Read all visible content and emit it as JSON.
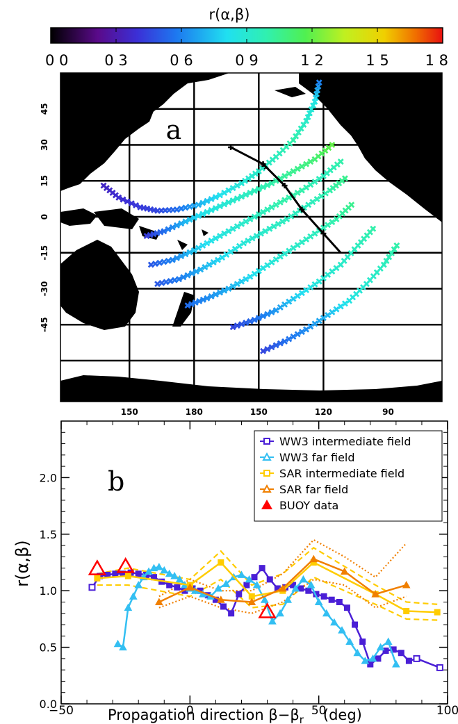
{
  "colorbar": {
    "title": "r(α,β)",
    "ticks": [
      "0 0",
      "0 3",
      "0 6",
      "0 9",
      "1 2",
      "1 5",
      "1 8"
    ],
    "range": [
      0,
      1.8
    ]
  },
  "chart_data": [
    {
      "type": "scatter",
      "panel_label": "a",
      "description_type": "map",
      "lat_tick_labels": [
        "45",
        "30",
        "15",
        "0",
        "-15",
        "-30",
        "-45"
      ],
      "lon_tick_labels": [
        "150",
        "180",
        "150",
        "120",
        "90"
      ],
      "lat_lines": [
        45,
        30,
        15,
        0,
        -15,
        -30,
        -45,
        -60
      ],
      "lon_lines": [
        150,
        180,
        210,
        240
      ],
      "track": [
        [
          -163,
          29
        ],
        [
          -148,
          22
        ],
        [
          -138,
          13
        ],
        [
          -130,
          3
        ],
        [
          -120,
          -7
        ],
        [
          -112,
          -15
        ]
      ],
      "arcs": [
        {
          "name": "arc-1",
          "points": [
            [
              138,
              13
            ],
            [
              145,
              8
            ],
            [
              155,
              4
            ],
            [
              163,
              2.5
            ],
            [
              172,
              3
            ],
            [
              182,
              5
            ],
            [
              192,
              9
            ],
            [
              202,
              14
            ],
            [
              210,
              19
            ],
            [
              218,
              25
            ],
            [
              226,
              32
            ],
            [
              232,
              40
            ],
            [
              236,
              48
            ],
            [
              238,
              56
            ]
          ],
          "values": [
            0.35,
            0.38,
            0.42,
            0.45,
            0.55,
            0.7,
            0.82,
            0.88,
            0.92,
            0.95,
            1.0,
            0.92,
            0.85,
            0.6
          ]
        },
        {
          "name": "arc-2",
          "points": [
            [
              158,
              -8
            ],
            [
              166,
              -6
            ],
            [
              176,
              -2
            ],
            [
              186,
              2
            ],
            [
              196,
              6
            ],
            [
              206,
              10
            ],
            [
              216,
              14
            ],
            [
              226,
              19
            ],
            [
              236,
              24
            ],
            [
              244,
              30
            ]
          ],
          "values": [
            0.42,
            0.55,
            0.72,
            0.85,
            0.9,
            0.95,
            1.0,
            1.05,
            1.1,
            1.2
          ]
        },
        {
          "name": "arc-3",
          "points": [
            [
              160,
              -20
            ],
            [
              170,
              -18
            ],
            [
              180,
              -14
            ],
            [
              190,
              -9
            ],
            [
              200,
              -4
            ],
            [
              210,
              1
            ],
            [
              220,
              6
            ],
            [
              230,
              11
            ],
            [
              240,
              17
            ],
            [
              248,
              23
            ]
          ],
          "values": [
            0.5,
            0.6,
            0.75,
            0.85,
            0.9,
            0.95,
            1.0,
            1.0,
            0.95,
            1.0
          ]
        },
        {
          "name": "arc-4",
          "points": [
            [
              163,
              -28
            ],
            [
              173,
              -26
            ],
            [
              183,
              -22
            ],
            [
              193,
              -17
            ],
            [
              203,
              -11
            ],
            [
              213,
              -6
            ],
            [
              223,
              -1
            ],
            [
              233,
              5
            ],
            [
              243,
              11
            ],
            [
              250,
              16
            ]
          ],
          "values": [
            0.5,
            0.58,
            0.7,
            0.8,
            0.88,
            0.92,
            0.95,
            0.95,
            1.0,
            1.05
          ]
        },
        {
          "name": "arc-5",
          "points": [
            [
              177,
              -37
            ],
            [
              186,
              -34
            ],
            [
              196,
              -30
            ],
            [
              206,
              -25
            ],
            [
              216,
              -19
            ],
            [
              226,
              -13
            ],
            [
              236,
              -7
            ],
            [
              246,
              -1
            ],
            [
              253,
              5
            ]
          ],
          "values": [
            0.55,
            0.62,
            0.7,
            0.8,
            0.88,
            0.92,
            0.95,
            1.0,
            1.05
          ]
        },
        {
          "name": "arc-6",
          "points": [
            [
              198,
              -46
            ],
            [
              208,
              -43
            ],
            [
              218,
              -39
            ],
            [
              228,
              -33
            ],
            [
              238,
              -27
            ],
            [
              248,
              -20
            ],
            [
              256,
              -12
            ],
            [
              263,
              -5
            ]
          ],
          "values": [
            0.45,
            0.55,
            0.65,
            0.78,
            0.88,
            0.92,
            0.95,
            1.0
          ]
        },
        {
          "name": "arc-7",
          "points": [
            [
              212,
              -56
            ],
            [
              222,
              -52
            ],
            [
              232,
              -47
            ],
            [
              242,
              -41
            ],
            [
              252,
              -35
            ],
            [
              260,
              -28
            ],
            [
              268,
              -20
            ],
            [
              274,
              -12
            ]
          ],
          "values": [
            0.45,
            0.55,
            0.62,
            0.72,
            0.85,
            0.9,
            0.95,
            1.0
          ]
        }
      ]
    },
    {
      "type": "line",
      "panel_label": "b",
      "xlabel": "Propagation direction β−β",
      "xlabel_sub": "r",
      "xlabel_unit": "(deg)",
      "ylabel": "r(α,β)",
      "xlim": [
        -50,
        100
      ],
      "ylim": [
        0,
        2.5
      ],
      "x_tick_labels": [
        "−50",
        "0",
        "50",
        "100"
      ],
      "y_tick_labels": [
        "0.0",
        "0.5",
        "1.0",
        "1.5",
        "2.0"
      ],
      "legend_position": "top-right",
      "series": [
        {
          "name": "WW3 intermediate field",
          "color": "#4a1fd6",
          "marker": "square",
          "x": [
            -38,
            -35,
            -32,
            -29,
            -26,
            -23,
            -20,
            -17,
            -14,
            -11,
            -8,
            -5,
            -2,
            1,
            4,
            7,
            10,
            13,
            16,
            19,
            22,
            25,
            28,
            31,
            34,
            37,
            40,
            43,
            46,
            49,
            52,
            55,
            58,
            61,
            64,
            67,
            70,
            73,
            76,
            79,
            82,
            85,
            88,
            97
          ],
          "y": [
            1.03,
            1.13,
            1.14,
            1.15,
            1.15,
            1.16,
            1.15,
            1.14,
            1.12,
            1.08,
            1.05,
            1.03,
            1.0,
            1.02,
            1.0,
            0.96,
            0.92,
            0.86,
            0.8,
            0.97,
            1.05,
            1.12,
            1.2,
            1.1,
            1.02,
            1.03,
            1.05,
            1.02,
            1.0,
            0.97,
            0.95,
            0.92,
            0.9,
            0.85,
            0.7,
            0.55,
            0.35,
            0.4,
            0.47,
            0.48,
            0.45,
            0.38,
            0.4,
            0.32
          ]
        },
        {
          "name": "WW3 far field",
          "color": "#33bff2",
          "marker": "triangle",
          "x": [
            -28,
            -26,
            -24,
            -22,
            -20,
            -18,
            -16,
            -14,
            -12,
            -10,
            -8,
            -6,
            -4,
            -2,
            0,
            2,
            5,
            8,
            11,
            14,
            17,
            20,
            23,
            26,
            29,
            32,
            35,
            38,
            41,
            44,
            47,
            50,
            53,
            56,
            59,
            62,
            65,
            68,
            71,
            74,
            77,
            80
          ],
          "y": [
            0.53,
            0.5,
            0.85,
            0.95,
            1.05,
            1.12,
            1.17,
            1.2,
            1.21,
            1.18,
            1.15,
            1.13,
            1.1,
            1.05,
            1.02,
            1.0,
            0.97,
            0.95,
            1.02,
            1.06,
            1.12,
            1.14,
            1.1,
            1.05,
            0.92,
            0.73,
            0.8,
            0.92,
            1.02,
            1.1,
            1.05,
            0.9,
            0.8,
            0.72,
            0.65,
            0.55,
            0.45,
            0.38,
            0.4,
            0.5,
            0.55,
            0.35
          ]
        },
        {
          "name": "SAR intermediate field",
          "color": "#ffcc00",
          "marker": "square",
          "x": [
            -36,
            -24,
            0,
            12,
            24,
            36,
            48,
            72,
            84,
            96
          ],
          "y": [
            1.11,
            1.13,
            1.05,
            1.25,
            0.95,
            1.0,
            1.25,
            0.97,
            0.82,
            0.81
          ]
        },
        {
          "name": "SAR far field",
          "color": "#f07f00",
          "marker": "triangle",
          "x": [
            -12,
            0,
            12,
            24,
            36,
            48,
            60,
            72,
            84
          ],
          "y": [
            0.9,
            1.03,
            0.92,
            0.9,
            1.02,
            1.28,
            1.17,
            0.97,
            1.05
          ]
        },
        {
          "name": "BUOY data",
          "color": "#ff0000",
          "marker": "open-triangle",
          "x": [
            -36,
            -25,
            30
          ],
          "y": [
            1.2,
            1.22,
            0.82
          ]
        }
      ],
      "dashed_bounds": {
        "sar_intermediate_upper": [
          [
            -36,
            1.15
          ],
          [
            -24,
            1.2
          ],
          [
            0,
            1.1
          ],
          [
            12,
            1.35
          ],
          [
            24,
            1.05
          ],
          [
            36,
            1.15
          ],
          [
            48,
            1.38
          ],
          [
            72,
            1.05
          ],
          [
            84,
            0.9
          ],
          [
            96,
            0.88
          ]
        ],
        "sar_intermediate_lower": [
          [
            -36,
            1.05
          ],
          [
            -24,
            1.05
          ],
          [
            0,
            0.95
          ],
          [
            12,
            1.1
          ],
          [
            24,
            0.85
          ],
          [
            36,
            0.88
          ],
          [
            48,
            1.12
          ],
          [
            72,
            0.88
          ],
          [
            84,
            0.75
          ],
          [
            96,
            0.74
          ]
        ],
        "sar_far_upper": [
          [
            -12,
            0.95
          ],
          [
            0,
            1.1
          ],
          [
            12,
            1.0
          ],
          [
            24,
            1.0
          ],
          [
            36,
            1.15
          ],
          [
            48,
            1.45
          ],
          [
            60,
            1.3
          ],
          [
            72,
            1.12
          ],
          [
            84,
            1.42
          ]
        ],
        "sar_far_lower": [
          [
            -12,
            0.85
          ],
          [
            0,
            0.95
          ],
          [
            12,
            0.85
          ],
          [
            24,
            0.8
          ],
          [
            36,
            0.9
          ],
          [
            48,
            1.1
          ],
          [
            60,
            1.05
          ],
          [
            72,
            0.85
          ],
          [
            84,
            0.95
          ]
        ]
      }
    }
  ]
}
